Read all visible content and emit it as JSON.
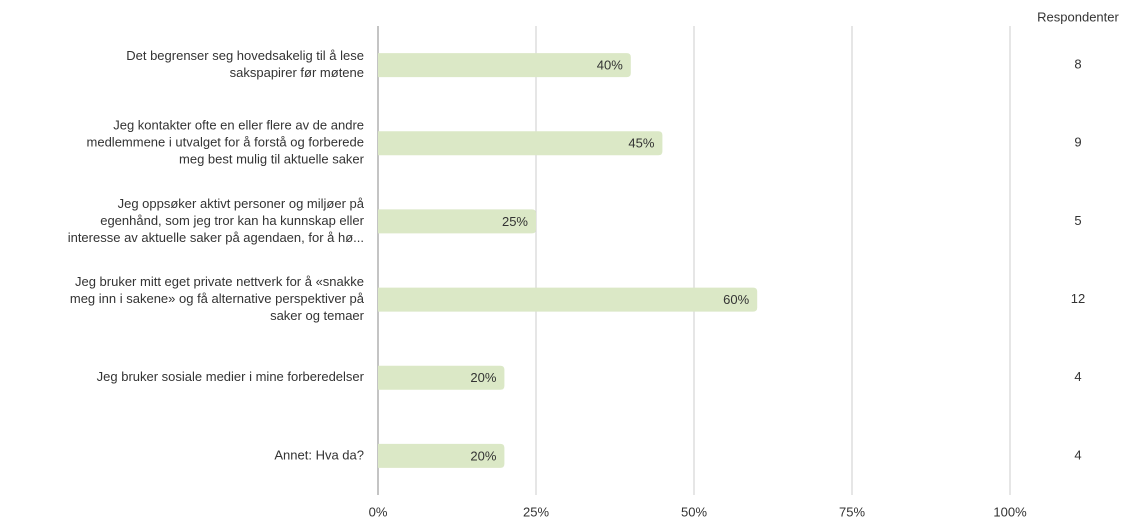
{
  "chart_data": {
    "type": "hbar",
    "categories": [
      [
        "Det begrenser seg hovedsakelig til å lese",
        "sakspapirer før møtene"
      ],
      [
        "Jeg kontakter ofte en eller flere av de andre",
        "medlemmene i utvalget for å forstå og forberede",
        "meg best mulig til aktuelle saker"
      ],
      [
        "Jeg oppsøker aktivt personer og miljøer på",
        "egenhånd, som jeg tror kan ha kunnskap eller",
        "interesse av aktuelle saker på agendaen, for å hø..."
      ],
      [
        "Jeg bruker mitt eget private nettverk for å «snakke",
        "meg inn i sakene» og få alternative perspektiver på",
        "saker og temaer"
      ],
      [
        "Jeg bruker sosiale medier i mine forberedelser"
      ],
      [
        "Annet: Hva da?"
      ]
    ],
    "values": [
      40,
      45,
      25,
      60,
      20,
      20
    ],
    "value_labels": [
      "40%",
      "45%",
      "25%",
      "60%",
      "20%",
      "20%"
    ],
    "color": "#dbe8c6",
    "xlim": [
      0,
      100
    ],
    "xticks": [
      {
        "value": 0,
        "label": "0%"
      },
      {
        "value": 25,
        "label": "25%"
      },
      {
        "value": 50,
        "label": "50%"
      },
      {
        "value": 75,
        "label": "75%"
      },
      {
        "value": 100,
        "label": "100%"
      }
    ],
    "grid": true,
    "respondents": {
      "title": "Respondenter",
      "values": [
        8,
        9,
        5,
        12,
        4,
        4
      ]
    }
  }
}
